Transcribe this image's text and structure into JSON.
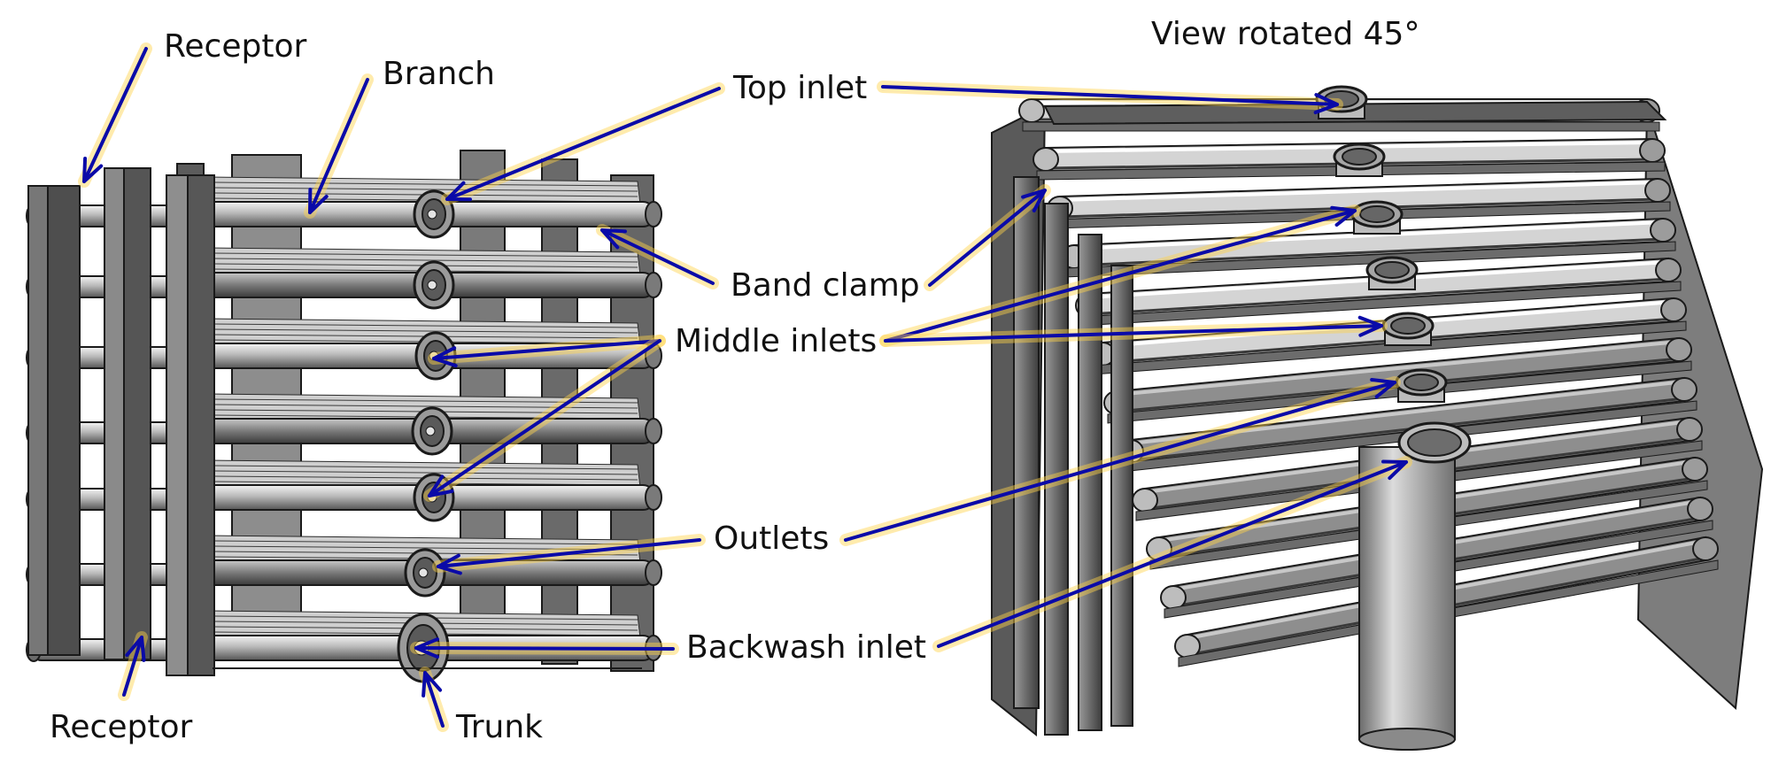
{
  "title": "View rotated 45°",
  "labels": {
    "receptor_top": "Receptor",
    "branch": "Branch",
    "top_inlet": "Top inlet",
    "band_clamp": "Band clamp",
    "middle_inlets": "Middle inlets",
    "outlets": "Outlets",
    "backwash_inlet": "Backwash inlet",
    "receptor_bottom": "Receptor",
    "trunk": "Trunk"
  },
  "colors": {
    "arrow": "#0a0aa8",
    "glow": "#ffd24a",
    "metal_dark": "#4a4a4a",
    "metal_mid": "#8c8c8c",
    "metal_light": "#d6d6d6",
    "outline": "#1a1a1a"
  }
}
